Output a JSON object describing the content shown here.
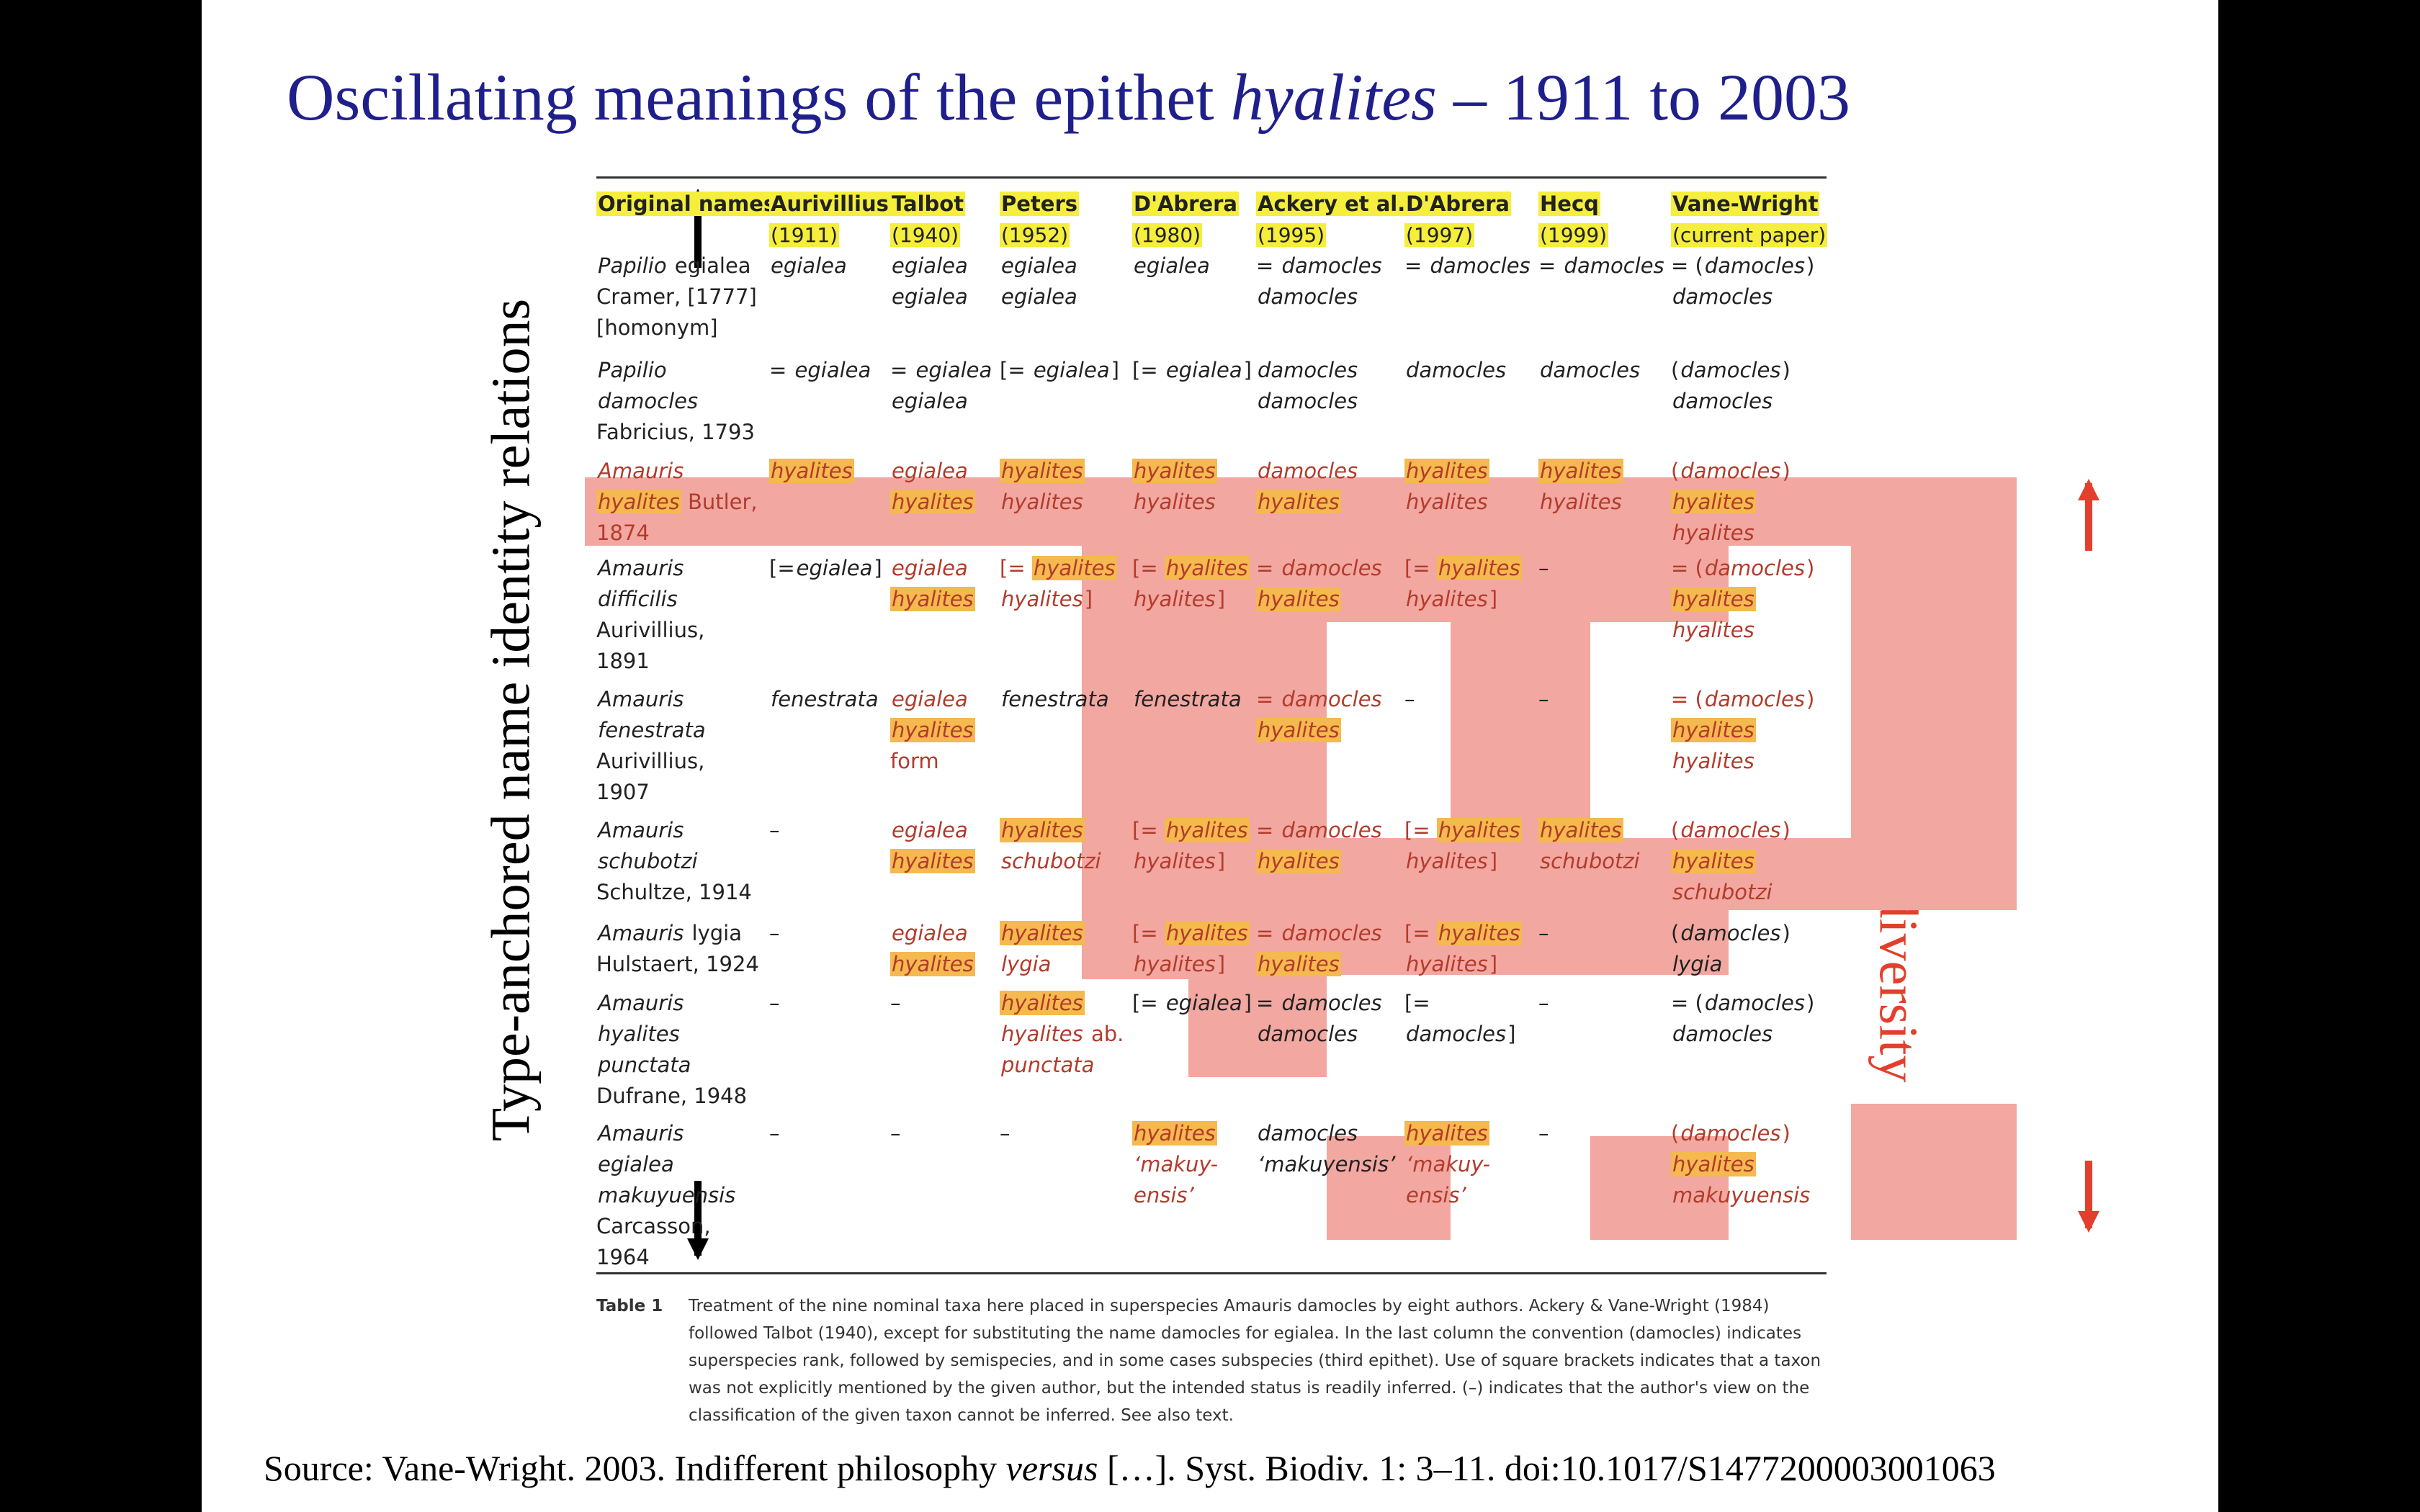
{
  "title": {
    "prefix": "Oscillating meanings of the epithet ",
    "italic": "hyalites",
    "suffix": " – 1911 to 2003"
  },
  "left_label": "Type-anchored name identity relations",
  "right_label": "Phenotypic diversity",
  "colors": {
    "title": "#1f1f8c",
    "right_label": "#e2402d",
    "highlight_cell": "#f2a7a1",
    "highlight_word": "#f4b94f",
    "header_highlight": "#f5ee3c"
  },
  "table": {
    "headers": [
      {
        "name": "Original names",
        "year": ""
      },
      {
        "name": "Aurivillius",
        "year": "(1911)"
      },
      {
        "name": "Talbot",
        "year": "(1940)"
      },
      {
        "name": "Peters",
        "year": "(1952)"
      },
      {
        "name": "D'Abrera",
        "year": "(1980)"
      },
      {
        "name": "Ackery et al.",
        "year": "(1995)"
      },
      {
        "name": "D'Abrera",
        "year": "(1997)"
      },
      {
        "name": "Hecq",
        "year": "(1999)"
      },
      {
        "name": "Vane-Wright",
        "year": "(current paper)"
      }
    ],
    "rows": [
      [
        [
          "[i]Papilio egialea",
          "Cramer, [1777]",
          "[homonym]"
        ],
        [
          "[i]egialea"
        ],
        [
          "[i]egialea",
          "[i]egialea"
        ],
        [
          "[i]egialea",
          "[i]egialea"
        ],
        [
          "[i]egialea"
        ],
        [
          "= [i]damocles",
          "[i]damocles"
        ],
        [
          "= [i]damocles"
        ],
        [
          "= [i]damocles"
        ],
        [
          "= ([i]damocles)",
          "[i]damocles"
        ]
      ],
      [
        [
          "[i]Papilio",
          "[i]damocles",
          "Fabricius, 1793"
        ],
        [
          "= [i]egialea"
        ],
        [
          "= [i]egialea",
          "[i]egialea"
        ],
        [
          "[= [i]egialea]"
        ],
        [
          "[= [i]egialea]"
        ],
        [
          "[i]damocles",
          "[i]damocles"
        ],
        [
          "[i]damocles"
        ],
        [
          "[i]damocles"
        ],
        [
          "([i]damocles)",
          "[i]damocles"
        ]
      ],
      [
        [
          "[i]Amauris",
          "[h]hyalites Butler,",
          "1874"
        ],
        [
          "[h]hyalites"
        ],
        [
          "[i]egialea",
          "[h]hyalites"
        ],
        [
          "[h]hyalites",
          "[i]hyalites"
        ],
        [
          "[h]hyalites",
          "[i]hyalites"
        ],
        [
          "[i]damocles",
          "[h]hyalites"
        ],
        [
          "[h]hyalites",
          "[i]hyalites"
        ],
        [
          "[h]hyalites",
          "[i]hyalites"
        ],
        [
          "([i]damocles)",
          "[h]hyalites",
          "[i]hyalites"
        ]
      ],
      [
        [
          "[i]Amauris",
          "[i]difficilis",
          "Aurivillius,",
          "1891"
        ],
        [
          "[=[i]egialea]"
        ],
        [
          "[i]egialea",
          "[h]hyalites"
        ],
        [
          "[= [h]hyalites",
          "[i]hyalites]"
        ],
        [
          "[= [h]hyalites",
          "[i]hyalites]"
        ],
        [
          "= [i]damocles",
          "[h]hyalites"
        ],
        [
          "[= [h]hyalites",
          "[i]hyalites]"
        ],
        [
          "–"
        ],
        [
          "= ([i]damocles)",
          "[h]hyalites",
          "[i]hyalites"
        ]
      ],
      [
        [
          "[i]Amauris",
          "[i]fenestrata",
          "Aurivillius,",
          "1907"
        ],
        [
          "[i]fenestrata"
        ],
        [
          "[i]egialea",
          "[h]hyalites",
          "form"
        ],
        [
          "[i]fenestrata"
        ],
        [
          "[i]fenestrata"
        ],
        [
          "= [i]damocles",
          "[h]hyalites"
        ],
        [
          "–"
        ],
        [
          "–"
        ],
        [
          "= ([i]damocles)",
          "[h]hyalites",
          "[i]hyalites"
        ]
      ],
      [
        [
          "[i]Amauris",
          "[i]schubotzi",
          "Schultze, 1914"
        ],
        [
          "–"
        ],
        [
          "[i]egialea",
          "[h]hyalites"
        ],
        [
          "[h]hyalites",
          "[i]schubotzi"
        ],
        [
          "[= [h]hyalites",
          "[i]hyalites]"
        ],
        [
          "= [i]damocles",
          "[h]hyalites"
        ],
        [
          "[= [h]hyalites",
          "[i]hyalites]"
        ],
        [
          "[h]hyalites",
          "[i]schubotzi"
        ],
        [
          "([i]damocles)",
          "[h]hyalites",
          "[i]schubotzi"
        ]
      ],
      [
        [
          "[i]Amauris lygia",
          "Hulstaert, 1924"
        ],
        [
          "–"
        ],
        [
          "[i]egialea",
          "[h]hyalites"
        ],
        [
          "[h]hyalites",
          "[i]lygia"
        ],
        [
          "[= [h]hyalites",
          "[i]hyalites]"
        ],
        [
          "= [i]damocles",
          "[h]hyalites"
        ],
        [
          "[= [h]hyalites",
          "[i]hyalites]"
        ],
        [
          "–"
        ],
        [
          "([i]damocles)",
          "[i]lygia"
        ]
      ],
      [
        [
          "[i]Amauris",
          "[i]hyalites",
          "[i]punctata",
          "Dufrane, 1948"
        ],
        [
          "–"
        ],
        [
          "–"
        ],
        [
          "[h]hyalites",
          "[i]hyalites ab.",
          "[i]punctata"
        ],
        [
          "[= [i]egialea]"
        ],
        [
          "= [i]damocles",
          "[i]damocles"
        ],
        [
          "[=",
          "[i]damocles]"
        ],
        [
          "–"
        ],
        [
          "= ([i]damocles)",
          "[i]damocles"
        ]
      ],
      [
        [
          "[i]Amauris",
          "[i]egialea",
          "[i]makuyuensis",
          "Carcasson,",
          "1964"
        ],
        [
          "–"
        ],
        [
          "–"
        ],
        [
          "–"
        ],
        [
          "[h]hyalites",
          "[i]‘makuy-",
          "[i]ensis’"
        ],
        [
          "[i]damocles",
          "[i]‘makuyensis’"
        ],
        [
          "[h]hyalites",
          "[i]‘makuy-",
          "[i]ensis’"
        ],
        [
          "–"
        ],
        [
          "([i]damocles)",
          "[h]hyalites",
          "[i]makuyuensis"
        ]
      ]
    ]
  },
  "caption": {
    "label": "Table 1",
    "text": "Treatment of the nine nominal taxa here placed in superspecies Amauris damocles by eight authors. Ackery & Vane-Wright (1984) followed Talbot (1940), except for substituting the name damocles for egialea. In the last column the convention (damocles) indicates superspecies rank, followed by semispecies, and in some cases subspecies (third epithet). Use of square brackets indicates that a taxon was not explicitly mentioned by the given author, but the intended status is readily inferred. (–) indicates that the author's view on the classification of the given taxon cannot be inferred. See also text."
  },
  "source": {
    "prefix": "Source: Vane-Wright. 2003. Indifferent philosophy ",
    "italic": "versus",
    "suffix": " […]. Syst. Biodiv. 1: 3–11. doi:10.1017/S1477200003001063"
  }
}
